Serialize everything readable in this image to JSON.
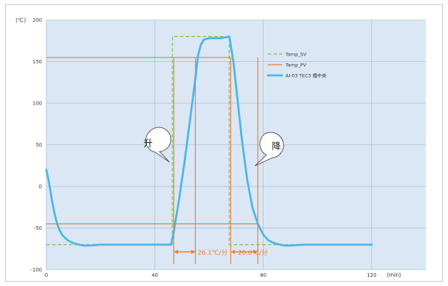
{
  "chart_data": {
    "type": "line",
    "y_unit_label": "(℃)",
    "x_unit_label": "(min)",
    "xlim": [
      0,
      140
    ],
    "ylim": [
      -100,
      200
    ],
    "x_ticks": [
      0,
      40,
      80,
      120
    ],
    "y_ticks": [
      -100,
      -50,
      0,
      50,
      100,
      150,
      200
    ],
    "grid": true,
    "legend_position": "right",
    "colors": {
      "plot_bg": "#dbe7f4",
      "grid": "#a7bfdc",
      "sv": "#7ac143",
      "pv": "#ed7d31",
      "measured": "#4bb5e6"
    },
    "series": [
      {
        "name": "Tamp_SV",
        "style": "dashed",
        "x": [
          0,
          46.5,
          46.5,
          67.5,
          67.5,
          120
        ],
        "y": [
          -70,
          -70,
          180,
          180,
          -70,
          -70
        ]
      },
      {
        "name": "Tamp_PV",
        "style": "solid",
        "x": [
          0,
          68
        ],
        "y": [
          155,
          155
        ]
      },
      {
        "name": "AI-03 TEC3 槽中央",
        "style": "thick",
        "x": [
          0,
          1,
          2,
          3,
          4,
          5,
          6,
          8,
          10,
          12,
          14,
          16,
          20,
          30,
          40,
          46,
          47,
          49,
          51,
          53,
          55,
          56,
          57,
          58,
          60,
          62,
          64,
          66,
          67.5,
          68,
          69,
          70,
          72,
          74,
          76,
          78,
          80,
          82,
          84,
          86,
          88,
          90,
          95,
          100,
          110,
          120
        ],
        "y": [
          20,
          5,
          -15,
          -32,
          -45,
          -53,
          -59,
          -65,
          -68,
          -70,
          -71,
          -71,
          -70,
          -70,
          -70,
          -70,
          -55,
          -15,
          30,
          80,
          130,
          158,
          170,
          176,
          178,
          178,
          178,
          179,
          180,
          170,
          150,
          120,
          60,
          10,
          -25,
          -45,
          -58,
          -65,
          -68,
          -70,
          -71,
          -71,
          -70,
          -70,
          -70,
          -70
        ]
      }
    ],
    "reference_lines": {
      "upper_y": 155,
      "lower_y": -45,
      "rise_markers_x": [
        47,
        55
      ],
      "fall_markers_x": [
        68,
        78
      ]
    },
    "annotations": {
      "rise_rate": "26.1℃/分",
      "fall_rate": "20.6℃/分",
      "rise_label": "升",
      "fall_label": "降"
    }
  }
}
